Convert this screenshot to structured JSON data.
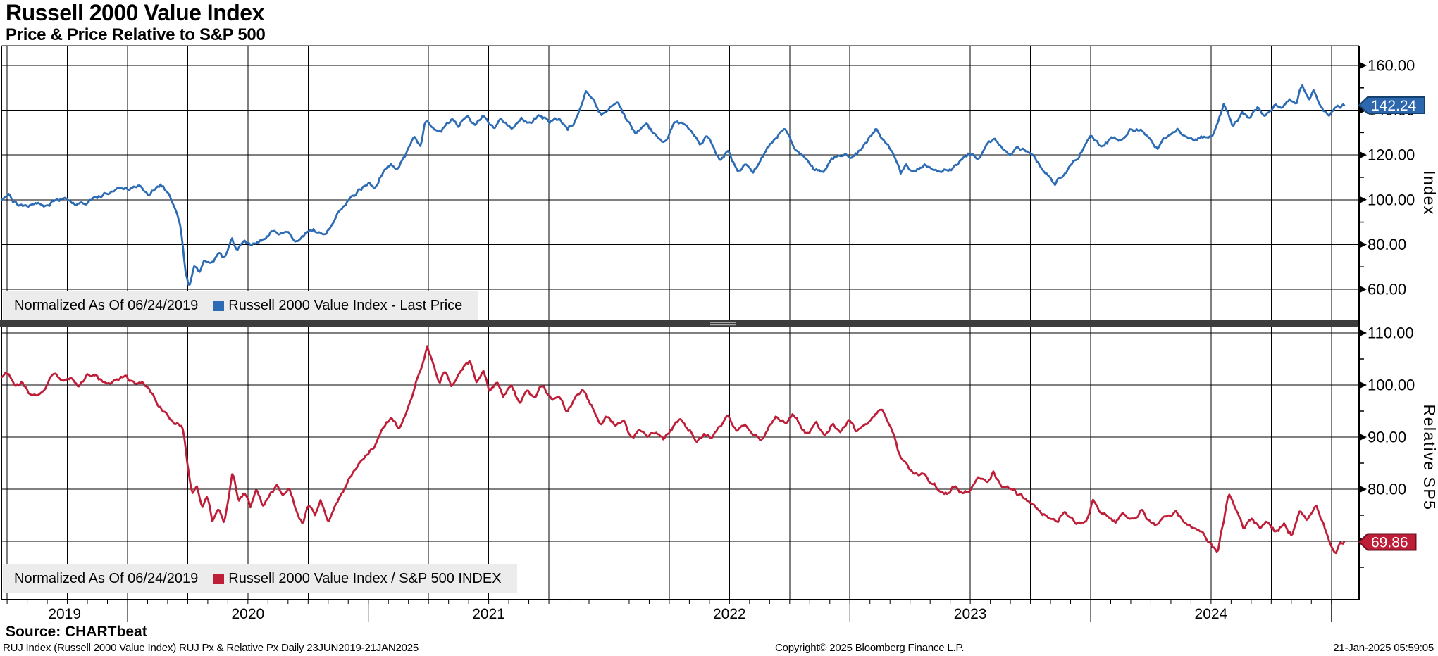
{
  "header": {
    "title": "Russell 2000 Value Index",
    "subtitle": "Price & Price Relative to S&P 500"
  },
  "footer": {
    "source": "Source: CHARTbeat",
    "description": "RUJ Index (Russell 2000 Value Index) RUJ Px & Relative Px  Daily 23JUN2019-21JAN2025",
    "copyright": "Copyright© 2025 Bloomberg Finance L.P.",
    "timestamp": "21-Jan-2025 05:59:05"
  },
  "colors": {
    "background": "#ffffff",
    "grid": "#000000",
    "price_line": "#2d6cb5",
    "price_callout_fill": "#2d67ad",
    "price_callout_border": "#14406e",
    "relative_line": "#bf1e38",
    "relative_callout_fill": "#bf1e38",
    "relative_callout_border": "#6d1020",
    "legend_bg": "#ececec",
    "divider": "#3c3c3c",
    "divider_grip": "#a6a6a6"
  },
  "x_axis": {
    "year_labels": [
      "2019",
      "2020",
      "2021",
      "2022",
      "2023",
      "2024"
    ],
    "range_start": "23JUN2019",
    "range_end": "21JAN2025"
  },
  "chart_data": [
    {
      "type": "line",
      "panel": "top",
      "series_name": "Russell 2000 Value Index - Last Price",
      "legend_prefix": "Normalized As Of 06/24/2019",
      "axis_title": "Index",
      "x_unit": "months_since_2019-06-23",
      "ylim": [
        46,
        169
      ],
      "yticks": [
        60,
        80,
        100,
        120,
        140,
        160
      ],
      "ytick_labels": [
        "60.00",
        "80.00",
        "100.00",
        "120.00",
        "140.00",
        "160.00"
      ],
      "minor_yticks": [
        70,
        90,
        110,
        130,
        150
      ],
      "last_price": 142.24,
      "last_price_label": "142.24",
      "points": [
        [
          0,
          100
        ],
        [
          0.35,
          101.2
        ],
        [
          0.8,
          98
        ],
        [
          1.3,
          96.4
        ],
        [
          1.7,
          98.6
        ],
        [
          2.1,
          97.2
        ],
        [
          2.7,
          100.6
        ],
        [
          3.2,
          101.6
        ],
        [
          3.8,
          98.6
        ],
        [
          4.2,
          97.4
        ],
        [
          4.8,
          101
        ],
        [
          5.3,
          103.2
        ],
        [
          5.9,
          104.6
        ],
        [
          6.3,
          105
        ],
        [
          6.9,
          107
        ],
        [
          7.3,
          104.6
        ],
        [
          7.9,
          107.4
        ],
        [
          8.3,
          104
        ],
        [
          8.6,
          97
        ],
        [
          8.9,
          88
        ],
        [
          9.15,
          68
        ],
        [
          9.35,
          62
        ],
        [
          9.6,
          71.5
        ],
        [
          9.85,
          67.5
        ],
        [
          10.1,
          74.5
        ],
        [
          10.45,
          71
        ],
        [
          10.8,
          76.5
        ],
        [
          11.1,
          74
        ],
        [
          11.45,
          83
        ],
        [
          11.75,
          78
        ],
        [
          12.1,
          80.5
        ],
        [
          12.5,
          78.5
        ],
        [
          13,
          82
        ],
        [
          13.4,
          85.5
        ],
        [
          13.8,
          84
        ],
        [
          14.2,
          87
        ],
        [
          14.6,
          83.2
        ],
        [
          15,
          85.5
        ],
        [
          15.5,
          87
        ],
        [
          16,
          84.2
        ],
        [
          16.45,
          88
        ],
        [
          16.9,
          97
        ],
        [
          17.4,
          101
        ],
        [
          17.85,
          104
        ],
        [
          18.3,
          107
        ],
        [
          18.6,
          105
        ],
        [
          19,
          113
        ],
        [
          19.4,
          116
        ],
        [
          19.75,
          114
        ],
        [
          20.2,
          122
        ],
        [
          20.6,
          127.5
        ],
        [
          20.9,
          123.5
        ],
        [
          21.1,
          134.5
        ],
        [
          21.9,
          131
        ],
        [
          22.4,
          137
        ],
        [
          22.8,
          134
        ],
        [
          23.2,
          139
        ],
        [
          23.6,
          134.5
        ],
        [
          24,
          138
        ],
        [
          24.5,
          132.5
        ],
        [
          24.9,
          136
        ],
        [
          25.4,
          131.5
        ],
        [
          25.9,
          136.5
        ],
        [
          26.3,
          134
        ],
        [
          26.8,
          138
        ],
        [
          27.3,
          134
        ],
        [
          27.8,
          135.5
        ],
        [
          28.2,
          131.5
        ],
        [
          28.7,
          137.5
        ],
        [
          29.1,
          147
        ],
        [
          29.5,
          143
        ],
        [
          29.9,
          136.5
        ],
        [
          30.35,
          141
        ],
        [
          30.7,
          142
        ],
        [
          31.1,
          136
        ],
        [
          31.6,
          128.5
        ],
        [
          32.1,
          133
        ],
        [
          32.5,
          129.5
        ],
        [
          33,
          127
        ],
        [
          33.5,
          135.5
        ],
        [
          34,
          133.5
        ],
        [
          34.4,
          129
        ],
        [
          34.8,
          124
        ],
        [
          35.2,
          128
        ],
        [
          35.8,
          118.5
        ],
        [
          36.2,
          122.5
        ],
        [
          36.65,
          112.5
        ],
        [
          37.05,
          116
        ],
        [
          37.45,
          113.5
        ],
        [
          38,
          121
        ],
        [
          38.6,
          128
        ],
        [
          39,
          132.5
        ],
        [
          39.5,
          124
        ],
        [
          40,
          120
        ],
        [
          40.5,
          113
        ],
        [
          40.9,
          110.5
        ],
        [
          41.4,
          118
        ],
        [
          41.9,
          121
        ],
        [
          42.3,
          118
        ],
        [
          42.8,
          122
        ],
        [
          43.2,
          126
        ],
        [
          43.6,
          131
        ],
        [
          44.1,
          124.5
        ],
        [
          44.5,
          119.5
        ],
        [
          44.8,
          111.5
        ],
        [
          45.1,
          115.5
        ],
        [
          45.4,
          112.5
        ],
        [
          45.9,
          115.5
        ],
        [
          46.3,
          114
        ],
        [
          46.8,
          110.5
        ],
        [
          47.2,
          112.5
        ],
        [
          47.6,
          115
        ],
        [
          48.1,
          118.5
        ],
        [
          48.4,
          120.5
        ],
        [
          48.7,
          117
        ],
        [
          49.1,
          124
        ],
        [
          49.4,
          126.5
        ],
        [
          49.8,
          124
        ],
        [
          50.3,
          120.5
        ],
        [
          50.6,
          124
        ],
        [
          51.1,
          120
        ],
        [
          51.5,
          117
        ],
        [
          52,
          111.5
        ],
        [
          52.5,
          107
        ],
        [
          52.9,
          111
        ],
        [
          53.4,
          117
        ],
        [
          53.9,
          123
        ],
        [
          54.3,
          128.5
        ],
        [
          54.8,
          123.5
        ],
        [
          55.3,
          127.5
        ],
        [
          55.7,
          126
        ],
        [
          56.3,
          131.5
        ],
        [
          56.8,
          133
        ],
        [
          57.2,
          128.5
        ],
        [
          57.6,
          123.5
        ],
        [
          58.2,
          129.5
        ],
        [
          58.6,
          132
        ],
        [
          59,
          128.5
        ],
        [
          59.4,
          126.5
        ],
        [
          59.9,
          128
        ],
        [
          60.3,
          127
        ],
        [
          60.9,
          143
        ],
        [
          61.35,
          133.5
        ],
        [
          61.8,
          140
        ],
        [
          62.2,
          137.5
        ],
        [
          62.6,
          141
        ],
        [
          63,
          138
        ],
        [
          63.4,
          142
        ],
        [
          63.8,
          140
        ],
        [
          64.2,
          144.5
        ],
        [
          64.5,
          142.5
        ],
        [
          64.8,
          152.5
        ],
        [
          65.15,
          146.5
        ],
        [
          65.4,
          149.5
        ],
        [
          65.9,
          139
        ],
        [
          66.25,
          138.5
        ],
        [
          66.6,
          141.5
        ],
        [
          66.9,
          142.24
        ]
      ]
    },
    {
      "type": "line",
      "panel": "bottom",
      "series_name": "Russell 2000 Value Index / S&P 500 INDEX",
      "legend_prefix": "Normalized As Of 06/24/2019",
      "axis_title": "Relative SP5",
      "x_unit": "months_since_2019-06-23",
      "ylim": [
        59,
        111.2
      ],
      "yticks": [
        70,
        80,
        90,
        100,
        110
      ],
      "ytick_labels": [
        "70.00",
        "80.00",
        "90.00",
        "100.00",
        "110.00"
      ],
      "minor_yticks": [
        65,
        75,
        85,
        95,
        105
      ],
      "last_price": 69.86,
      "last_price_label": "69.86",
      "points": [
        [
          0,
          101.5
        ],
        [
          0.3,
          102.2
        ],
        [
          0.7,
          99.5
        ],
        [
          1.05,
          100.6
        ],
        [
          1.4,
          98.2
        ],
        [
          1.8,
          97.6
        ],
        [
          2.2,
          99.6
        ],
        [
          2.6,
          102.6
        ],
        [
          3,
          100.6
        ],
        [
          3.4,
          101.6
        ],
        [
          3.8,
          100
        ],
        [
          4.2,
          102.2
        ],
        [
          4.6,
          102.6
        ],
        [
          5,
          101
        ],
        [
          5.4,
          100
        ],
        [
          5.8,
          100.6
        ],
        [
          6.2,
          101.4
        ],
        [
          6.6,
          100
        ],
        [
          7,
          100.6
        ],
        [
          7.4,
          98.6
        ],
        [
          7.8,
          96
        ],
        [
          8.2,
          94.4
        ],
        [
          8.5,
          93
        ],
        [
          8.8,
          92.4
        ],
        [
          9.05,
          91.4
        ],
        [
          9.3,
          84
        ],
        [
          9.5,
          79.5
        ],
        [
          9.75,
          81
        ],
        [
          10,
          77
        ],
        [
          10.25,
          79.6
        ],
        [
          10.5,
          74.8
        ],
        [
          10.8,
          77
        ],
        [
          11.1,
          74.2
        ],
        [
          11.35,
          80
        ],
        [
          11.5,
          84.2
        ],
        [
          11.8,
          78.4
        ],
        [
          12.1,
          80
        ],
        [
          12.4,
          76.8
        ],
        [
          12.7,
          79.6
        ],
        [
          13,
          76.4
        ],
        [
          13.35,
          78.6
        ],
        [
          13.7,
          80.6
        ],
        [
          14,
          79
        ],
        [
          14.3,
          80.6
        ],
        [
          14.7,
          75.8
        ],
        [
          15,
          73.2
        ],
        [
          15.3,
          77
        ],
        [
          15.6,
          74.8
        ],
        [
          15.9,
          77.6
        ],
        [
          16.3,
          73.8
        ],
        [
          16.65,
          76.6
        ],
        [
          17,
          79
        ],
        [
          17.4,
          82
        ],
        [
          17.8,
          85
        ],
        [
          18.2,
          87.6
        ],
        [
          18.6,
          88.6
        ],
        [
          19,
          91
        ],
        [
          19.4,
          93.6
        ],
        [
          19.8,
          92
        ],
        [
          20.2,
          96
        ],
        [
          20.5,
          99
        ],
        [
          20.9,
          103.5
        ],
        [
          21.2,
          107.8
        ],
        [
          21.5,
          104
        ],
        [
          21.8,
          100.2
        ],
        [
          22.1,
          103
        ],
        [
          22.4,
          100.2
        ],
        [
          22.7,
          101.6
        ],
        [
          23,
          103.6
        ],
        [
          23.35,
          104.6
        ],
        [
          23.65,
          100.6
        ],
        [
          24,
          103
        ],
        [
          24.3,
          99
        ],
        [
          24.7,
          100.6
        ],
        [
          25,
          97.2
        ],
        [
          25.4,
          99.6
        ],
        [
          25.8,
          96.6
        ],
        [
          26.2,
          99
        ],
        [
          26.6,
          97
        ],
        [
          27,
          99.6
        ],
        [
          27.4,
          96.6
        ],
        [
          27.8,
          97.2
        ],
        [
          28.2,
          94.6
        ],
        [
          28.6,
          97.6
        ],
        [
          29,
          99
        ],
        [
          29.4,
          96
        ],
        [
          29.85,
          92.6
        ],
        [
          30.2,
          94.2
        ],
        [
          30.6,
          92
        ],
        [
          31,
          92.6
        ],
        [
          31.4,
          89.6
        ],
        [
          31.8,
          91.6
        ],
        [
          32.2,
          90
        ],
        [
          32.6,
          91.2
        ],
        [
          33,
          89.6
        ],
        [
          33.4,
          92
        ],
        [
          33.8,
          93.2
        ],
        [
          34.2,
          91
        ],
        [
          34.6,
          89.6
        ],
        [
          35,
          91.2
        ],
        [
          35.4,
          90.2
        ],
        [
          35.8,
          92.2
        ],
        [
          36.2,
          93.6
        ],
        [
          36.6,
          91
        ],
        [
          37,
          92.6
        ],
        [
          37.4,
          90.6
        ],
        [
          37.8,
          89.6
        ],
        [
          38.2,
          92.2
        ],
        [
          38.6,
          94.6
        ],
        [
          39,
          93
        ],
        [
          39.4,
          94.2
        ],
        [
          39.8,
          92
        ],
        [
          40.2,
          90.6
        ],
        [
          40.6,
          92.6
        ],
        [
          41,
          90.2
        ],
        [
          41.4,
          92.6
        ],
        [
          41.8,
          91
        ],
        [
          42.2,
          93
        ],
        [
          42.6,
          91
        ],
        [
          43,
          92.2
        ],
        [
          43.5,
          93.6
        ],
        [
          43.9,
          95
        ],
        [
          44.3,
          92
        ],
        [
          44.8,
          86
        ],
        [
          45.1,
          84
        ],
        [
          45.5,
          82
        ],
        [
          45.9,
          83.2
        ],
        [
          46.3,
          80.6
        ],
        [
          46.7,
          80
        ],
        [
          47.1,
          79.6
        ],
        [
          47.5,
          81
        ],
        [
          47.9,
          79
        ],
        [
          48.3,
          80.2
        ],
        [
          48.7,
          82.6
        ],
        [
          49.1,
          81
        ],
        [
          49.4,
          83.6
        ],
        [
          49.8,
          81.6
        ],
        [
          50.2,
          80.6
        ],
        [
          50.6,
          79
        ],
        [
          51,
          78
        ],
        [
          51.4,
          77
        ],
        [
          51.8,
          76
        ],
        [
          52.2,
          75
        ],
        [
          52.6,
          73.8
        ],
        [
          53,
          75.6
        ],
        [
          53.4,
          74
        ],
        [
          53.8,
          73.4
        ],
        [
          54.15,
          75
        ],
        [
          54.4,
          78.6
        ],
        [
          54.7,
          76.4
        ],
        [
          55.1,
          76
        ],
        [
          55.5,
          74.6
        ],
        [
          55.9,
          75.6
        ],
        [
          56.3,
          74.2
        ],
        [
          56.8,
          76
        ],
        [
          57.2,
          73.6
        ],
        [
          57.6,
          73
        ],
        [
          58,
          74.4
        ],
        [
          58.5,
          75.4
        ],
        [
          58.9,
          73.4
        ],
        [
          59.3,
          72.4
        ],
        [
          59.7,
          71.4
        ],
        [
          60.1,
          70
        ],
        [
          60.6,
          67.8
        ],
        [
          61.15,
          78.8
        ],
        [
          61.5,
          75.4
        ],
        [
          61.9,
          72.6
        ],
        [
          62.3,
          74.4
        ],
        [
          62.7,
          73
        ],
        [
          63.1,
          74.2
        ],
        [
          63.5,
          71.8
        ],
        [
          63.9,
          73.4
        ],
        [
          64.3,
          71.4
        ],
        [
          64.7,
          76.2
        ],
        [
          65.1,
          74.4
        ],
        [
          65.5,
          76.6
        ],
        [
          65.9,
          72.4
        ],
        [
          66.2,
          69.4
        ],
        [
          66.5,
          67.9
        ],
        [
          66.7,
          70.2
        ],
        [
          66.9,
          69.86
        ]
      ]
    }
  ]
}
